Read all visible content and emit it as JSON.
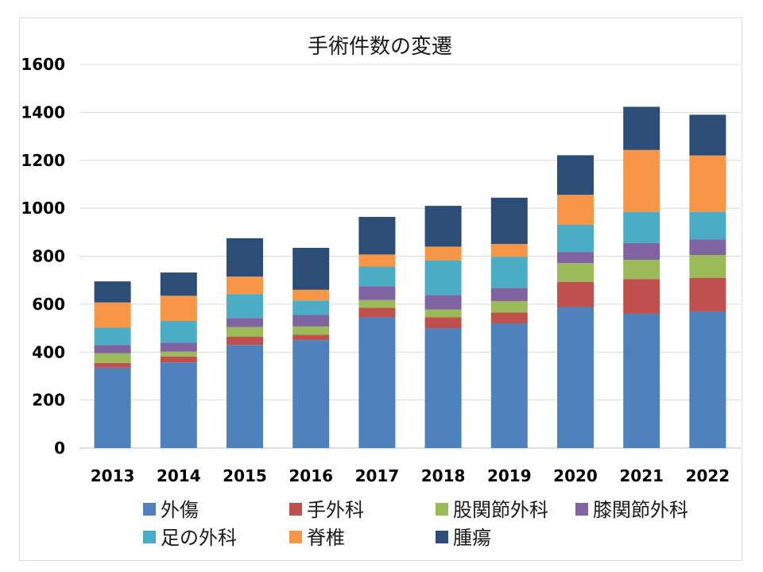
{
  "chart_data": {
    "type": "bar",
    "stacked": true,
    "title": "手術件数の変遷",
    "xlabel": "",
    "ylabel": "",
    "ylim": [
      0,
      1600
    ],
    "yticks": [
      0,
      200,
      400,
      600,
      800,
      1000,
      1200,
      1400,
      1600
    ],
    "grid": true,
    "legend_position": "bottom",
    "categories": [
      "2013",
      "2014",
      "2015",
      "2016",
      "2017",
      "2018",
      "2019",
      "2020",
      "2021",
      "2022"
    ],
    "series": [
      {
        "name": "外傷",
        "color": "#4f81bd",
        "values": [
          335,
          357,
          430,
          450,
          545,
          500,
          520,
          588,
          560,
          570
        ]
      },
      {
        "name": "手外科",
        "color": "#c0504d",
        "values": [
          20,
          25,
          35,
          22,
          40,
          45,
          45,
          105,
          145,
          140
        ]
      },
      {
        "name": "股関節外科",
        "color": "#9bbb59",
        "values": [
          40,
          20,
          40,
          35,
          32,
          33,
          48,
          78,
          80,
          95
        ]
      },
      {
        "name": "膝関節外科",
        "color": "#8064a2",
        "values": [
          35,
          38,
          37,
          48,
          58,
          60,
          55,
          47,
          70,
          65
        ]
      },
      {
        "name": "足の外科",
        "color": "#4bacc6",
        "values": [
          72,
          90,
          100,
          60,
          82,
          145,
          130,
          113,
          130,
          115
        ]
      },
      {
        "name": "脊椎",
        "color": "#f79646",
        "values": [
          105,
          105,
          73,
          45,
          50,
          57,
          53,
          125,
          258,
          235
        ]
      },
      {
        "name": "腫瘍",
        "color": "#2c4d75",
        "values": [
          88,
          97,
          160,
          175,
          157,
          170,
          193,
          165,
          180,
          170
        ]
      }
    ]
  }
}
